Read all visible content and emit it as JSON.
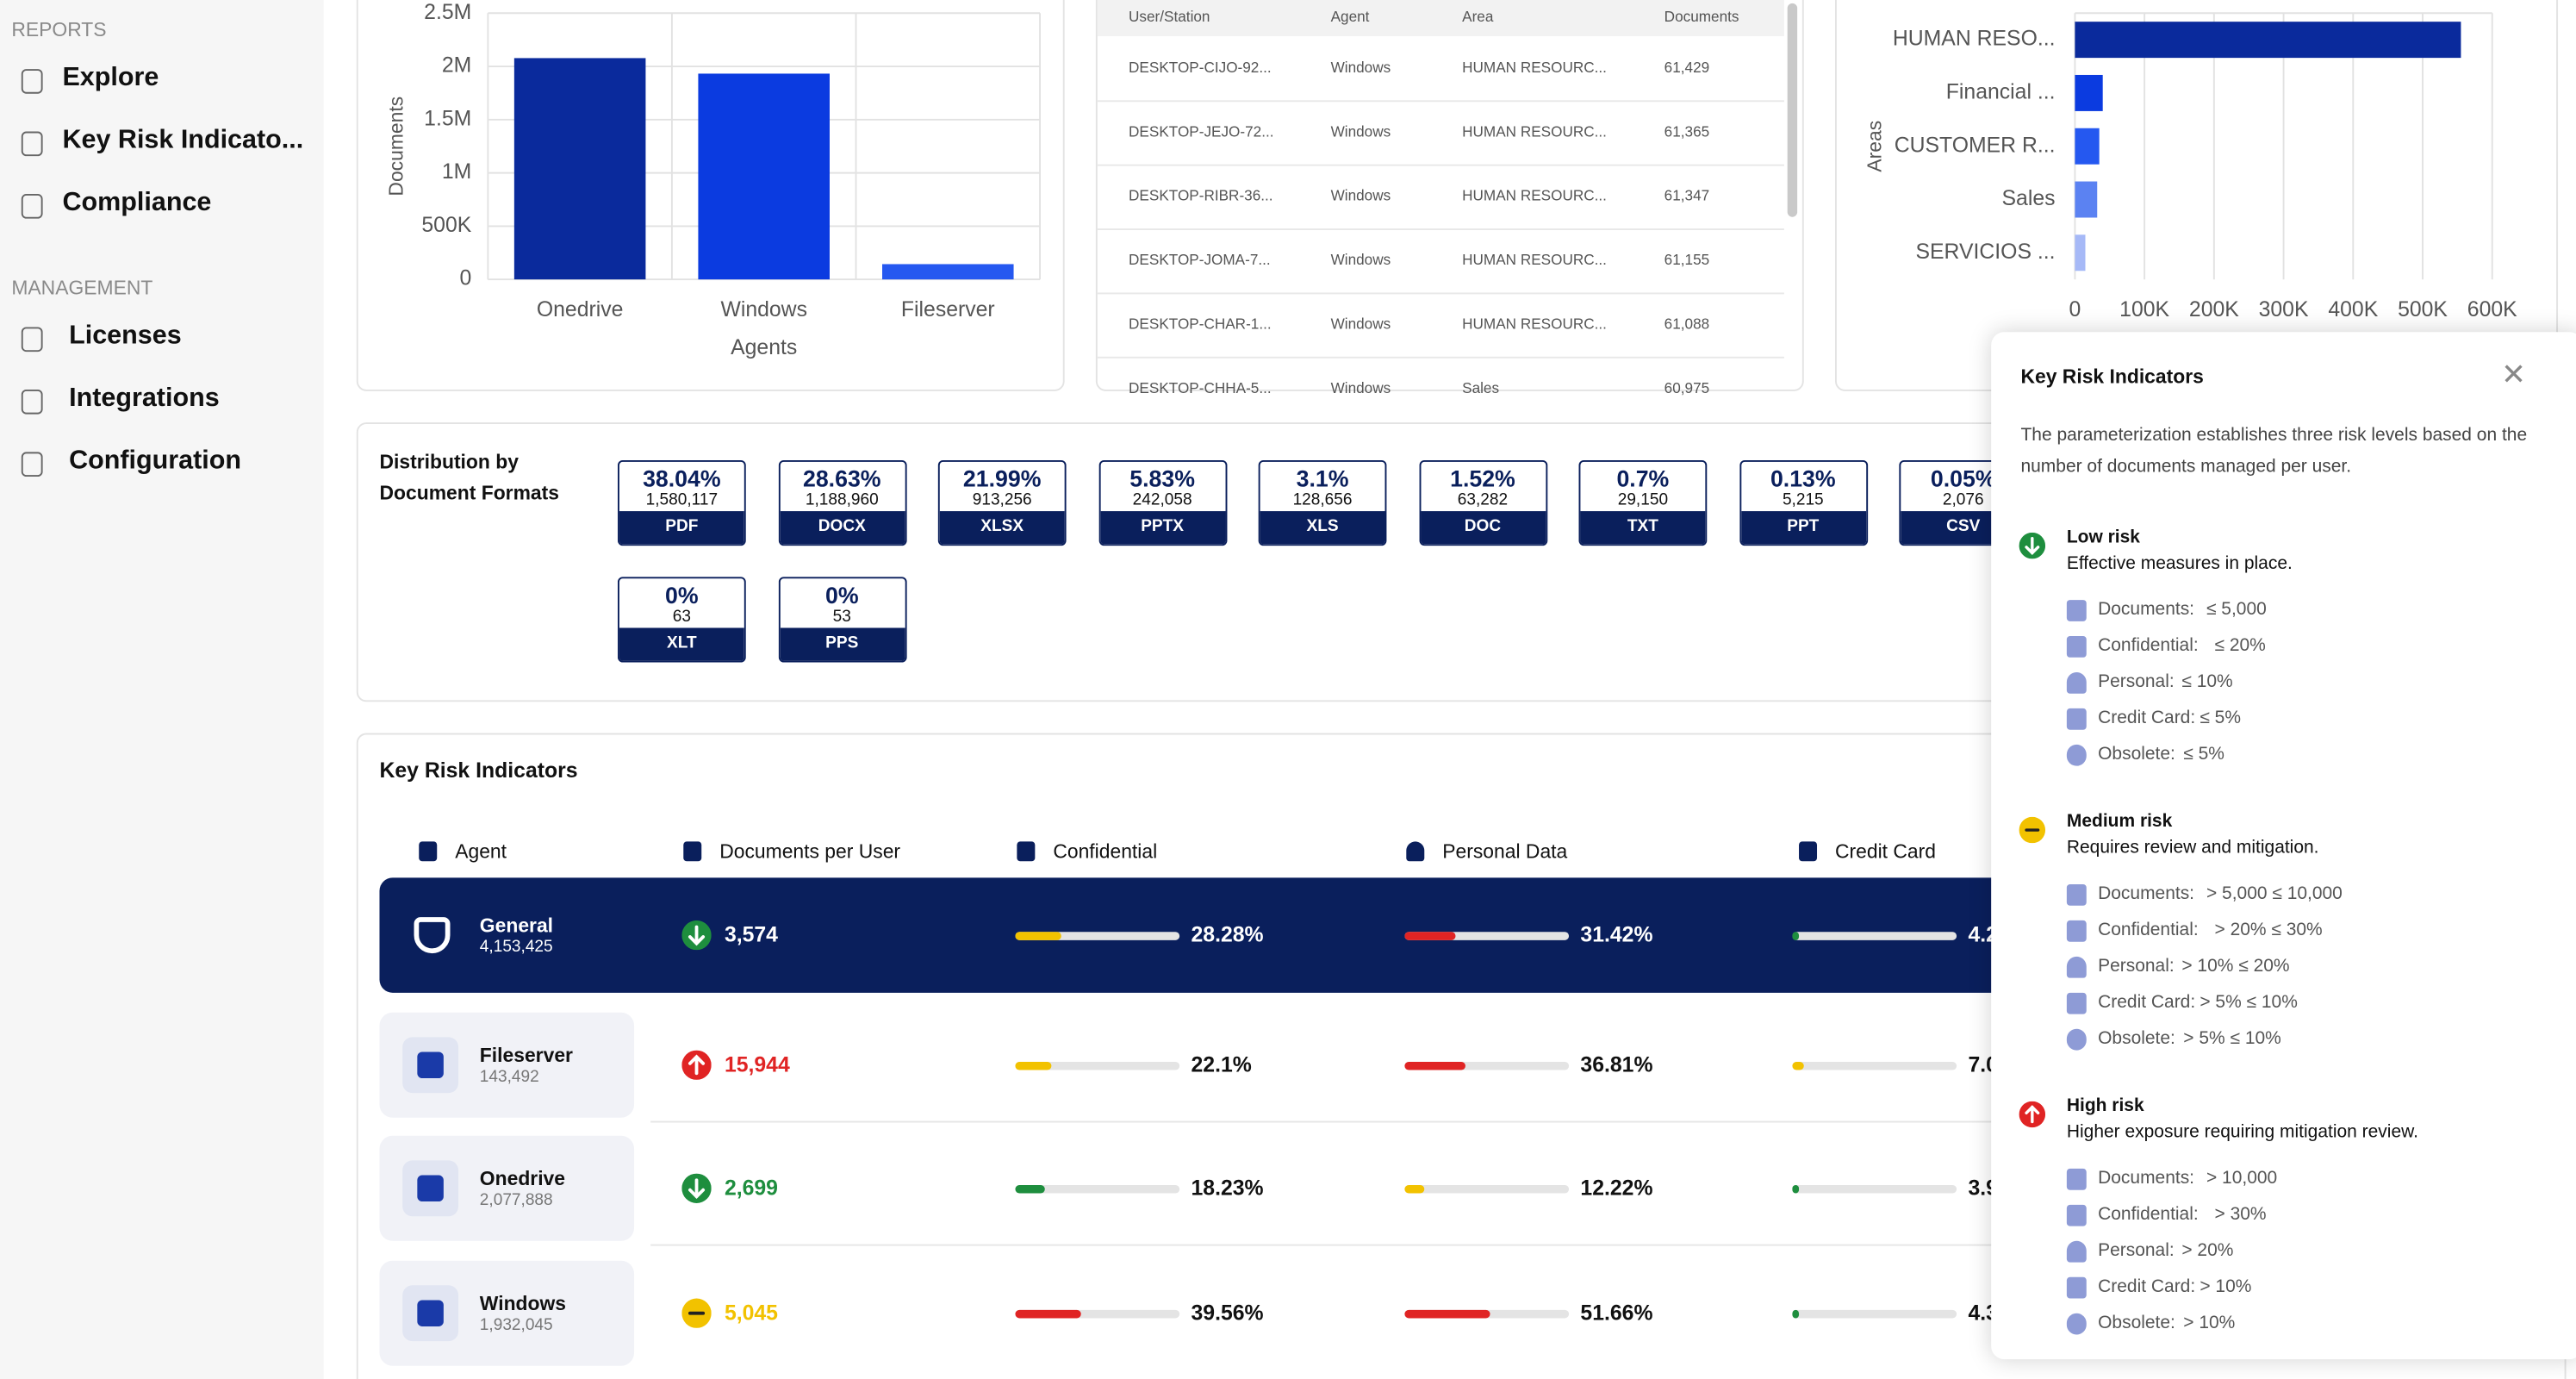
{
  "sidebar": {
    "sections": [
      {
        "title": "REPORTS",
        "items": [
          "Explore",
          "Key Risk Indicato...",
          "Compliance"
        ]
      },
      {
        "title": "MANAGEMENT",
        "items": [
          "Licenses",
          "Integrations",
          "Configuration"
        ]
      }
    ]
  },
  "chart_data": [
    {
      "type": "bar",
      "y_label": "Documents",
      "x_label": "Agents",
      "categories": [
        "Onedrive",
        "Windows",
        "Fileserver"
      ],
      "values": [
        2077888,
        1932045,
        143492
      ],
      "colors": [
        "#0a2a9c",
        "#0b3be0",
        "#2558f0"
      ],
      "ylim": [
        0,
        2500000
      ],
      "yticks": [
        0,
        {
          "value": 500000,
          "label": "500K"
        },
        {
          "value": 1000000,
          "label": "1M"
        },
        {
          "value": 1500000,
          "label": "1.5M"
        },
        {
          "value": 2000000,
          "label": "2M"
        },
        {
          "value": 2500000,
          "label": "2.5M"
        }
      ],
      "grid": true
    },
    {
      "type": "barh",
      "y_label": "Areas",
      "categories": [
        "HUMAN RESO...",
        "Financial ...",
        "CUSTOMER R...",
        "Sales",
        "SERVICIOS ..."
      ],
      "values": [
        555000,
        40000,
        35000,
        32000,
        15000
      ],
      "colors": [
        "#0a2a9c",
        "#0b3be0",
        "#2558f0",
        "#5b82f2",
        "#a6b9f7"
      ],
      "xlim": [
        0,
        600000
      ],
      "xticks": [
        0,
        {
          "value": 100000,
          "label": "100K"
        },
        {
          "value": 200000,
          "label": "200K"
        },
        {
          "value": 300000,
          "label": "300K"
        },
        {
          "value": 400000,
          "label": "400K"
        },
        {
          "value": 500000,
          "label": "500K"
        },
        {
          "value": 600000,
          "label": "600K"
        }
      ],
      "grid": true
    }
  ],
  "users_table": {
    "columns": [
      "User/Station",
      "Agent",
      "Area",
      "Documents"
    ],
    "rows": [
      [
        "DESKTOP-CIJO-92...",
        "Windows",
        "HUMAN RESOURC...",
        "61,429"
      ],
      [
        "DESKTOP-JEJO-72...",
        "Windows",
        "HUMAN RESOURC...",
        "61,365"
      ],
      [
        "DESKTOP-RIBR-36...",
        "Windows",
        "HUMAN RESOURC...",
        "61,347"
      ],
      [
        "DESKTOP-JOMA-7...",
        "Windows",
        "HUMAN RESOURC...",
        "61,155"
      ],
      [
        "DESKTOP-CHAR-1...",
        "Windows",
        "HUMAN RESOURC...",
        "61,088"
      ],
      [
        "DESKTOP-CHHA-5...",
        "Windows",
        "Sales",
        "60,975"
      ]
    ]
  },
  "formats": {
    "title": "Distribution by Document Formats",
    "items": [
      {
        "pct": "38.04%",
        "count": "1,580,117",
        "name": "PDF"
      },
      {
        "pct": "28.63%",
        "count": "1,188,960",
        "name": "DOCX"
      },
      {
        "pct": "21.99%",
        "count": "913,256",
        "name": "XLSX"
      },
      {
        "pct": "5.83%",
        "count": "242,058",
        "name": "PPTX"
      },
      {
        "pct": "3.1%",
        "count": "128,656",
        "name": "XLS"
      },
      {
        "pct": "1.52%",
        "count": "63,282",
        "name": "DOC"
      },
      {
        "pct": "0.7%",
        "count": "29,150",
        "name": "TXT"
      },
      {
        "pct": "0.13%",
        "count": "5,215",
        "name": "PPT"
      },
      {
        "pct": "0.05%",
        "count": "2,076",
        "name": "CSV"
      },
      {
        "pct": "0%",
        "count": "63",
        "name": "XLT"
      },
      {
        "pct": "0%",
        "count": "53",
        "name": "PPS"
      }
    ]
  },
  "kri": {
    "title": "Key Risk Indicators",
    "columns": [
      "Agent",
      "Documents per User",
      "Confidential",
      "Personal Data",
      "Credit Card"
    ],
    "rows": [
      {
        "name": "General",
        "count": "4,153,425",
        "docs": {
          "label": "3,574",
          "trend": "down",
          "color": "#1e8e3e"
        },
        "metrics": [
          {
            "value": 28.28,
            "label": "28.28%",
            "color": "#f2c200"
          },
          {
            "value": 31.42,
            "label": "31.42%",
            "color": "#e02424"
          },
          {
            "value": 4.2,
            "label": "4.2",
            "color": "#1e8e3e"
          }
        ]
      },
      {
        "name": "Fileserver",
        "count": "143,492",
        "docs": {
          "label": "15,944",
          "trend": "up",
          "color": "#e02424"
        },
        "metrics": [
          {
            "value": 22.1,
            "label": "22.1%",
            "color": "#f2c200"
          },
          {
            "value": 36.81,
            "label": "36.81%",
            "color": "#e02424"
          },
          {
            "value": 7.0,
            "label": "7.0",
            "color": "#f2c200"
          }
        ]
      },
      {
        "name": "Onedrive",
        "count": "2,077,888",
        "docs": {
          "label": "2,699",
          "trend": "down",
          "color": "#1e8e3e"
        },
        "metrics": [
          {
            "value": 18.23,
            "label": "18.23%",
            "color": "#1e8e3e"
          },
          {
            "value": 12.22,
            "label": "12.22%",
            "color": "#f2c200"
          },
          {
            "value": 3.9,
            "label": "3.9",
            "color": "#1e8e3e"
          }
        ]
      },
      {
        "name": "Windows",
        "count": "1,932,045",
        "docs": {
          "label": "5,045",
          "trend": "flat",
          "color": "#f2c200"
        },
        "metrics": [
          {
            "value": 39.56,
            "label": "39.56%",
            "color": "#e02424"
          },
          {
            "value": 51.66,
            "label": "51.66%",
            "color": "#e02424"
          },
          {
            "value": 4.3,
            "label": "4.3",
            "color": "#1e8e3e"
          }
        ]
      }
    ]
  },
  "kri_popup": {
    "title": "Key Risk Indicators",
    "description": "The parameterization establishes three risk levels based on the number of documents managed per user.",
    "levels": [
      {
        "name": "Low risk",
        "description": "Effective measures in place.",
        "trend": "down",
        "color": "#1e8e3e",
        "criteria": [
          {
            "label": "Documents:",
            "value": "≤ 5,000"
          },
          {
            "label": "Confidential:",
            "value": "≤ 20%"
          },
          {
            "label": "Personal:",
            "value": "≤ 10%"
          },
          {
            "label": "Credit Card:",
            "value": "≤ 5%"
          },
          {
            "label": "Obsolete:",
            "value": "≤ 5%"
          }
        ]
      },
      {
        "name": "Medium risk",
        "description": "Requires review and mitigation.",
        "trend": "flat",
        "color": "#f2c200",
        "criteria": [
          {
            "label": "Documents:",
            "value": "> 5,000 ≤ 10,000"
          },
          {
            "label": "Confidential:",
            "value": "> 20% ≤ 30%"
          },
          {
            "label": "Personal:",
            "value": "> 10% ≤ 20%"
          },
          {
            "label": "Credit Card:",
            "value": "> 5% ≤ 10%"
          },
          {
            "label": "Obsolete:",
            "value": "> 5% ≤ 10%"
          }
        ]
      },
      {
        "name": "High risk",
        "description": "Higher exposure requiring mitigation review.",
        "trend": "up",
        "color": "#e02424",
        "criteria": [
          {
            "label": "Documents:",
            "value": "> 10,000"
          },
          {
            "label": "Confidential:",
            "value": "> 30%"
          },
          {
            "label": "Personal:",
            "value": "> 20%"
          },
          {
            "label": "Credit Card:",
            "value": "> 10%"
          },
          {
            "label": "Obsolete:",
            "value": "> 10%"
          }
        ]
      }
    ]
  }
}
